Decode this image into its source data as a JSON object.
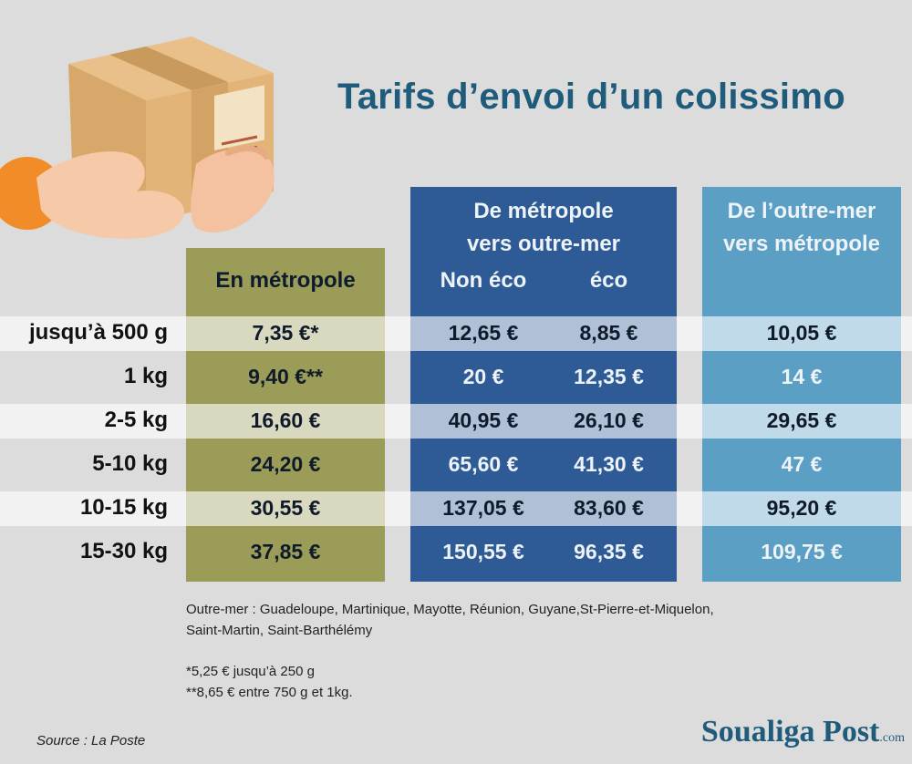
{
  "title": "Tarifs d’envoi d’un colissimo",
  "columns": {
    "metropole": "En métropole",
    "vers_outremer_line1": "De métropole",
    "vers_outremer_line2": "vers outre-mer",
    "non_eco": "Non éco",
    "eco": "éco",
    "depuis_outremer_line1": "De l’outre-mer",
    "depuis_outremer_line2": "vers métropole"
  },
  "rows": [
    {
      "weight": "jusqu’à 500 g",
      "metropole": "7,35 €*",
      "non_eco": "12,65 €",
      "eco": "8,85 €",
      "depuis_outremer": "10,05 €"
    },
    {
      "weight": "1 kg",
      "metropole": "9,40 €**",
      "non_eco": "20 €",
      "eco": "12,35 €",
      "depuis_outremer": "14 €"
    },
    {
      "weight": "2-5 kg",
      "metropole": "16,60 €",
      "non_eco": "40,95 €",
      "eco": "26,10 €",
      "depuis_outremer": "29,65 €"
    },
    {
      "weight": "5-10 kg",
      "metropole": "24,20 €",
      "non_eco": "65,60 €",
      "eco": "41,30 €",
      "depuis_outremer": "47 €"
    },
    {
      "weight": "10-15 kg",
      "metropole": "30,55 €",
      "non_eco": "137,05 €",
      "eco": "83,60 €",
      "depuis_outremer": "95,20 €"
    },
    {
      "weight": "15-30 kg",
      "metropole": "37,85 €",
      "non_eco": "150,55 €",
      "eco": "96,35 €",
      "depuis_outremer": "109,75 €"
    }
  ],
  "notes": {
    "outremer_line1": "Outre-mer : Guadeloupe, Martinique, Mayotte, Réunion, Guyane,St-Pierre-et-Miquelon,",
    "outremer_line2": "Saint-Martin, Saint-Barthélémy",
    "footnote1": "*5,25 € jusqu’à 250 g",
    "footnote2": "**8,65 € entre 750 g et 1kg."
  },
  "source": "Source : La Poste",
  "brand": {
    "name": "Soualiga Post",
    "suffix": ".com"
  },
  "colors": {
    "green": "#9a9c58",
    "navy": "#2e5a95",
    "teal": "#5b9fc4",
    "title": "#1f5b7a",
    "background": "#dcdcdc"
  },
  "illustration": "hands-holding-parcel-icon"
}
